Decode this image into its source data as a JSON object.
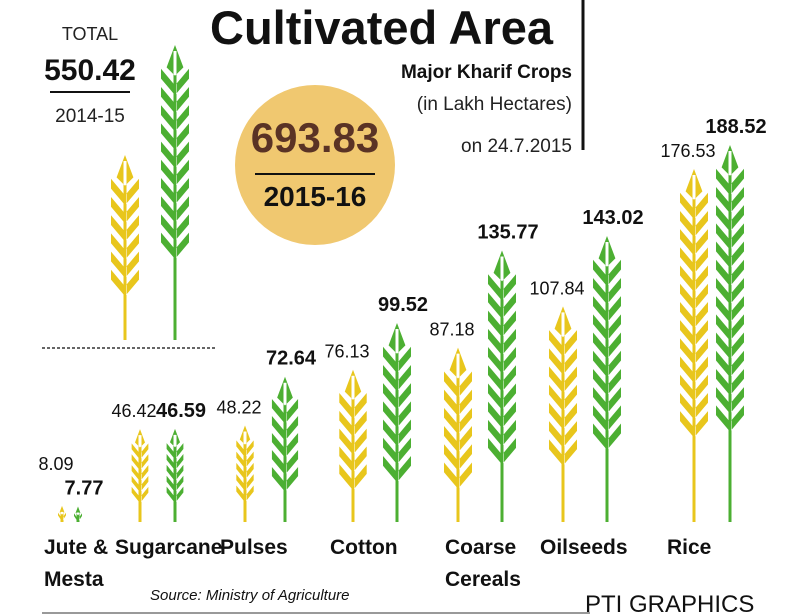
{
  "chart_data": {
    "type": "bar",
    "title": "Cultivated Area",
    "subtitle": "Major Kharif Crops",
    "unit_note": "(in Lakh Hectares)",
    "date_note": "on 24.7.2015",
    "total_label": "TOTAL",
    "categories": [
      "Jute & Mesta",
      "Sugarcane",
      "Pulses",
      "Cotton",
      "Coarse Cereals",
      "Oilseeds",
      "Rice"
    ],
    "series": [
      {
        "name": "2014-15",
        "color": "#e8c61c",
        "total": 550.42,
        "values": [
          8.09,
          46.42,
          48.22,
          76.13,
          87.18,
          107.84,
          176.53
        ]
      },
      {
        "name": "2015-16",
        "color": "#4caf32",
        "total": 693.83,
        "values": [
          7.77,
          46.59,
          72.64,
          99.52,
          135.77,
          143.02,
          188.52
        ]
      }
    ],
    "source": "Source: Ministry of Agriculture",
    "credit": "PTI GRAPHICS"
  }
}
